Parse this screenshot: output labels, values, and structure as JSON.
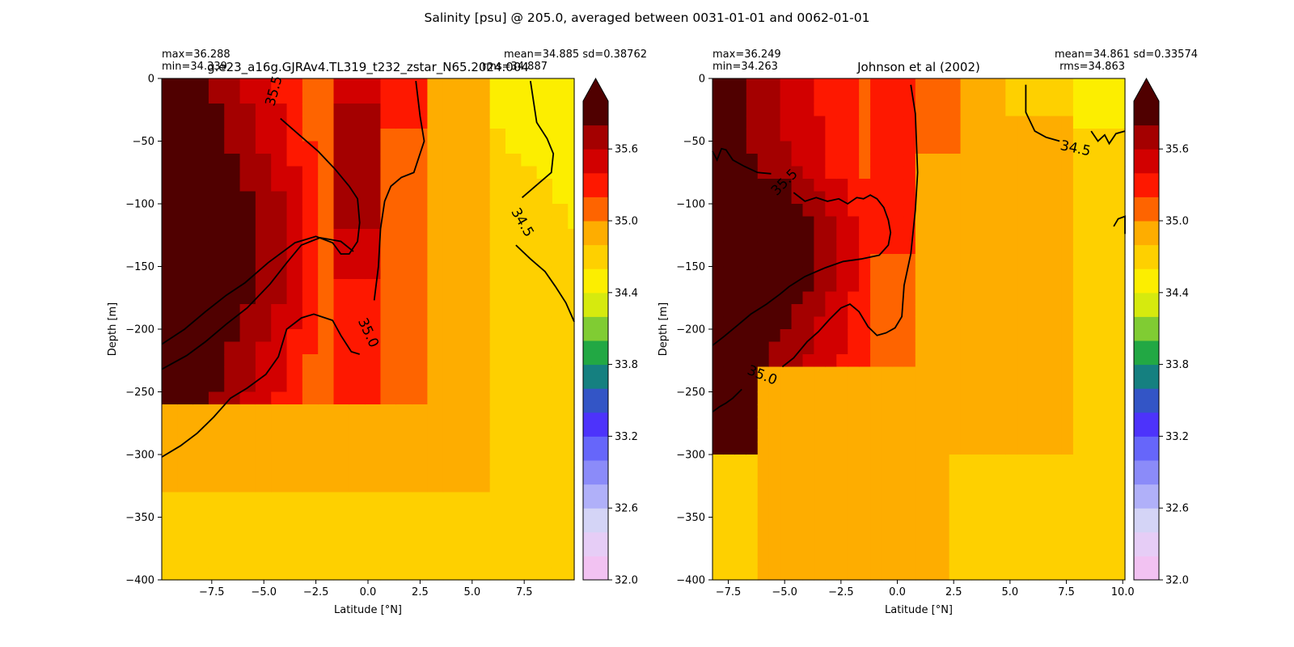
{
  "figure_title": "Salinity [psu] @ 205.0, averaged between 0031-01-01 and 0062-01-01",
  "colors": {
    "levels": [
      32.0,
      32.2,
      32.4,
      32.6,
      32.8,
      33.0,
      33.2,
      33.4,
      33.6,
      33.8,
      34.0,
      34.2,
      34.4,
      34.6,
      34.8,
      35.0,
      35.2,
      35.4,
      35.6,
      35.8,
      36.0
    ],
    "bands": [
      "#f2c2f2",
      "#e6cdf6",
      "#d4d4f6",
      "#b0b0f9",
      "#8b8bf9",
      "#6666fa",
      "#4d33fb",
      "#3355c6",
      "#158080",
      "#22a844",
      "#80cc33",
      "#d6ea0e",
      "#fcee00",
      "#fed000",
      "#fead00",
      "#fe6400",
      "#fe1800",
      "#d20000",
      "#a40000",
      "#500000"
    ],
    "extend_over": "#500000",
    "contour": "#000000"
  },
  "chart_data": [
    {
      "type": "heatmap",
      "name": "model",
      "title": "g.e23_a16g.GJRAv4.TL319_t232_zstar_N65.2024.004",
      "xlabel": "Latitude [°N]",
      "ylabel": "Depth [m]",
      "xlim": [
        -9.9,
        9.9
      ],
      "ylim": [
        -400,
        0
      ],
      "xticks": [
        -7.5,
        -5.0,
        -2.5,
        0.0,
        2.5,
        5.0,
        7.5
      ],
      "yticks": [
        0,
        -50,
        -100,
        -150,
        -200,
        -250,
        -300,
        -350,
        -400
      ],
      "stats_left": [
        "max=36.288",
        "min=34.339"
      ],
      "stats_right": [
        "mean=34.885 sd=0.38762",
        "rms=34.887"
      ],
      "max": 36.288,
      "min": 34.339,
      "mean": 34.885,
      "sd": 0.38762,
      "rms": 34.887,
      "contour_levels": [
        34.5,
        35.0,
        35.5
      ],
      "contour_labels": [
        {
          "text": "35.5",
          "x": -4.5,
          "y": -10,
          "angle": 75
        },
        {
          "text": "35.0",
          "x": 0.0,
          "y": -203,
          "angle": -65
        },
        {
          "text": "34.5",
          "x": 7.4,
          "y": -115,
          "angle": -60
        }
      ],
      "contours": [
        [
          [
            -4.2,
            -32
          ],
          [
            -3.3,
            -45
          ],
          [
            -2.4,
            -58
          ],
          [
            -1.6,
            -72
          ],
          [
            -0.9,
            -86
          ],
          [
            -0.5,
            -96
          ],
          [
            -0.4,
            -115
          ],
          [
            -0.5,
            -130
          ],
          [
            -0.9,
            -140
          ],
          [
            -1.3,
            -140
          ],
          [
            -1.7,
            -131
          ],
          [
            -2.5,
            -126
          ],
          [
            -3.5,
            -131
          ],
          [
            -4.8,
            -147
          ],
          [
            -5.9,
            -163
          ],
          [
            -6.8,
            -173
          ],
          [
            -7.8,
            -186
          ],
          [
            -8.8,
            -200
          ],
          [
            -9.9,
            -212
          ]
        ],
        [
          [
            -9.9,
            -232
          ],
          [
            -8.7,
            -221
          ],
          [
            -7.8,
            -210
          ],
          [
            -6.8,
            -196
          ],
          [
            -5.8,
            -183
          ],
          [
            -4.7,
            -164
          ],
          [
            -3.9,
            -147
          ],
          [
            -3.2,
            -133
          ],
          [
            -2.3,
            -127
          ],
          [
            -1.3,
            -130
          ],
          [
            -0.7,
            -138
          ]
        ],
        [
          [
            -9.9,
            -302
          ],
          [
            -9.0,
            -293
          ],
          [
            -8.2,
            -283
          ],
          [
            -7.4,
            -270
          ],
          [
            -6.6,
            -255
          ],
          [
            -5.8,
            -247
          ],
          [
            -4.9,
            -236
          ],
          [
            -4.3,
            -222
          ],
          [
            -3.9,
            -200
          ],
          [
            -3.2,
            -191
          ],
          [
            -2.6,
            -188
          ],
          [
            -1.7,
            -193
          ],
          [
            -1.3,
            -205
          ],
          [
            -0.8,
            -218
          ],
          [
            -0.4,
            -220
          ]
        ],
        [
          [
            0.3,
            -177
          ],
          [
            0.5,
            -150
          ],
          [
            0.6,
            -120
          ],
          [
            0.8,
            -98
          ],
          [
            1.1,
            -86
          ],
          [
            1.6,
            -79
          ],
          [
            2.2,
            -75
          ],
          [
            2.7,
            -50
          ],
          [
            2.5,
            -30
          ],
          [
            2.3,
            -2
          ]
        ],
        [
          [
            7.8,
            -2
          ],
          [
            8.1,
            -35
          ],
          [
            8.6,
            -48
          ],
          [
            8.9,
            -60
          ],
          [
            8.8,
            -75
          ],
          [
            8.1,
            -85
          ],
          [
            7.4,
            -95
          ]
        ],
        [
          [
            7.1,
            -133
          ],
          [
            7.8,
            -144
          ],
          [
            8.5,
            -154
          ],
          [
            9.0,
            -166
          ],
          [
            9.5,
            -179
          ],
          [
            9.9,
            -194
          ]
        ]
      ]
    },
    {
      "type": "heatmap",
      "name": "observations",
      "title": "Johnson et al (2002)",
      "xlabel": "Latitude [°N]",
      "ylabel": "Depth [m]",
      "xlim": [
        -8.2,
        10.1
      ],
      "ylim": [
        -400,
        0
      ],
      "xticks": [
        -7.5,
        -5.0,
        -2.5,
        0.0,
        2.5,
        5.0,
        7.5,
        10.0
      ],
      "yticks": [
        0,
        -50,
        -100,
        -150,
        -200,
        -250,
        -300,
        -350,
        -400
      ],
      "stats_left": [
        "max=36.249",
        "min=34.263"
      ],
      "stats_right": [
        "mean=34.861 sd=0.33574",
        "rms=34.863"
      ],
      "max": 36.249,
      "min": 34.263,
      "mean": 34.861,
      "sd": 0.33574,
      "rms": 34.863,
      "contour_levels": [
        34.5,
        35.0,
        35.5
      ],
      "contour_labels": [
        {
          "text": "35.5",
          "x": -5.0,
          "y": -83,
          "angle": 45
        },
        {
          "text": "35.0",
          "x": -6.0,
          "y": -237,
          "angle": -22
        },
        {
          "text": "34.5",
          "x": 7.9,
          "y": -56,
          "angle": -12
        }
      ],
      "contours": [
        [
          [
            -8.2,
            -58
          ],
          [
            -8.0,
            -65
          ],
          [
            -7.8,
            -56
          ],
          [
            -7.6,
            -57
          ],
          [
            -7.3,
            -65
          ],
          [
            -6.8,
            -70
          ],
          [
            -6.2,
            -75
          ],
          [
            -5.6,
            -76
          ]
        ],
        [
          [
            -4.6,
            -91
          ],
          [
            -4.1,
            -98
          ],
          [
            -3.6,
            -95
          ],
          [
            -3.1,
            -98
          ],
          [
            -2.6,
            -96
          ],
          [
            -2.2,
            -100
          ],
          [
            -1.8,
            -95
          ],
          [
            -1.5,
            -96
          ],
          [
            -1.2,
            -93
          ],
          [
            -0.9,
            -96
          ],
          [
            -0.6,
            -103
          ],
          [
            -0.4,
            -113
          ],
          [
            -0.3,
            -123
          ],
          [
            -0.4,
            -133
          ],
          [
            -0.8,
            -141
          ],
          [
            -1.6,
            -144
          ],
          [
            -2.4,
            -146
          ],
          [
            -3.2,
            -151
          ],
          [
            -4.1,
            -158
          ],
          [
            -4.8,
            -166
          ],
          [
            -5.2,
            -172
          ],
          [
            -5.8,
            -180
          ],
          [
            -6.5,
            -188
          ],
          [
            -7.1,
            -197
          ],
          [
            -7.7,
            -206
          ],
          [
            -8.2,
            -213
          ]
        ],
        [
          [
            -8.2,
            -266
          ],
          [
            -7.9,
            -262
          ],
          [
            -7.6,
            -259
          ],
          [
            -7.3,
            -255
          ],
          [
            -6.9,
            -248
          ]
        ],
        [
          [
            -5.1,
            -230
          ],
          [
            -4.6,
            -223
          ],
          [
            -4.0,
            -210
          ],
          [
            -3.5,
            -202
          ],
          [
            -3.0,
            -192
          ],
          [
            -2.5,
            -183
          ],
          [
            -2.1,
            -180
          ],
          [
            -1.7,
            -186
          ],
          [
            -1.3,
            -198
          ],
          [
            -0.9,
            -205
          ],
          [
            -0.5,
            -203
          ],
          [
            -0.1,
            -199
          ],
          [
            0.2,
            -190
          ],
          [
            0.3,
            -165
          ],
          [
            0.6,
            -140
          ],
          [
            0.8,
            -105
          ],
          [
            0.9,
            -75
          ],
          [
            0.8,
            -28
          ],
          [
            0.6,
            -5
          ]
        ],
        [
          [
            5.7,
            -5
          ],
          [
            5.7,
            -27
          ],
          [
            6.1,
            -42
          ],
          [
            6.6,
            -47
          ],
          [
            7.2,
            -50
          ]
        ],
        [
          [
            8.6,
            -42
          ],
          [
            8.9,
            -50
          ],
          [
            9.2,
            -45
          ],
          [
            9.4,
            -52
          ],
          [
            9.7,
            -44
          ],
          [
            10.1,
            -42
          ]
        ],
        [
          [
            9.6,
            -118
          ],
          [
            9.8,
            -112
          ],
          [
            10.1,
            -110
          ],
          [
            10.1,
            -124
          ]
        ]
      ]
    }
  ],
  "colorbar": {
    "ticks": [
      "35.6",
      "35.0",
      "34.4",
      "33.8",
      "33.2",
      "32.6",
      "32.0"
    ],
    "tick_values": [
      35.6,
      35.0,
      34.4,
      33.8,
      33.2,
      32.6,
      32.0
    ]
  }
}
